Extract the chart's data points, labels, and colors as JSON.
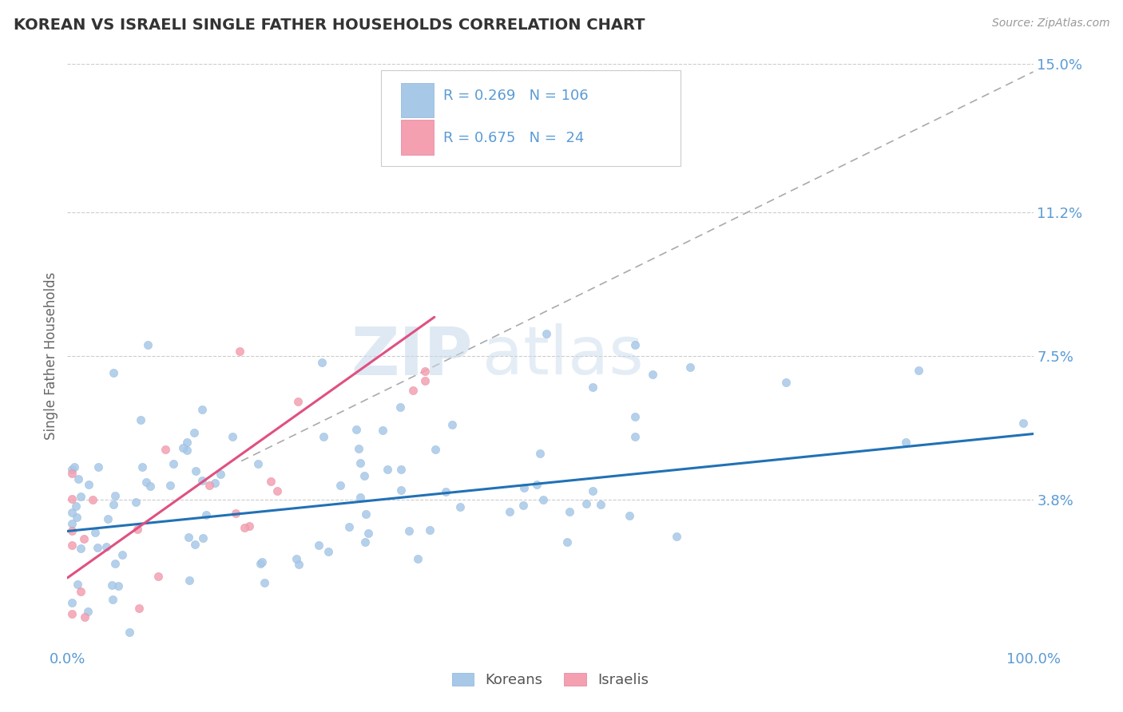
{
  "title": "KOREAN VS ISRAELI SINGLE FATHER HOUSEHOLDS CORRELATION CHART",
  "source_text": "Source: ZipAtlas.com",
  "ylabel": "Single Father Households",
  "xlim": [
    0.0,
    1.0
  ],
  "ylim": [
    0.0,
    0.15
  ],
  "yticks": [
    0.038,
    0.075,
    0.112,
    0.15
  ],
  "ytick_labels": [
    "3.8%",
    "7.5%",
    "11.2%",
    "15.0%"
  ],
  "korean_color": "#a8c8e8",
  "israeli_color": "#f4a0b0",
  "korean_line_color": "#2171b5",
  "israeli_line_color": "#e05080",
  "korean_R": 0.269,
  "korean_N": 106,
  "israeli_R": 0.675,
  "israeli_N": 24,
  "watermark_zip": "ZIP",
  "watermark_atlas": "atlas",
  "background_color": "#ffffff",
  "grid_color": "#cccccc",
  "title_color": "#333333",
  "axis_label_color": "#5b9bd5",
  "legend_text_color": "#5b9bd5",
  "korean_trend_start_x": 0.0,
  "korean_trend_start_y": 0.03,
  "korean_trend_end_x": 1.0,
  "korean_trend_end_y": 0.055,
  "israeli_trend_start_x": 0.0,
  "israeli_trend_start_y": 0.018,
  "israeli_trend_end_x": 0.38,
  "israeli_trend_end_y": 0.085,
  "gray_trend_start_x": 0.18,
  "gray_trend_start_y": 0.048,
  "gray_trend_end_x": 1.0,
  "gray_trend_end_y": 0.148
}
